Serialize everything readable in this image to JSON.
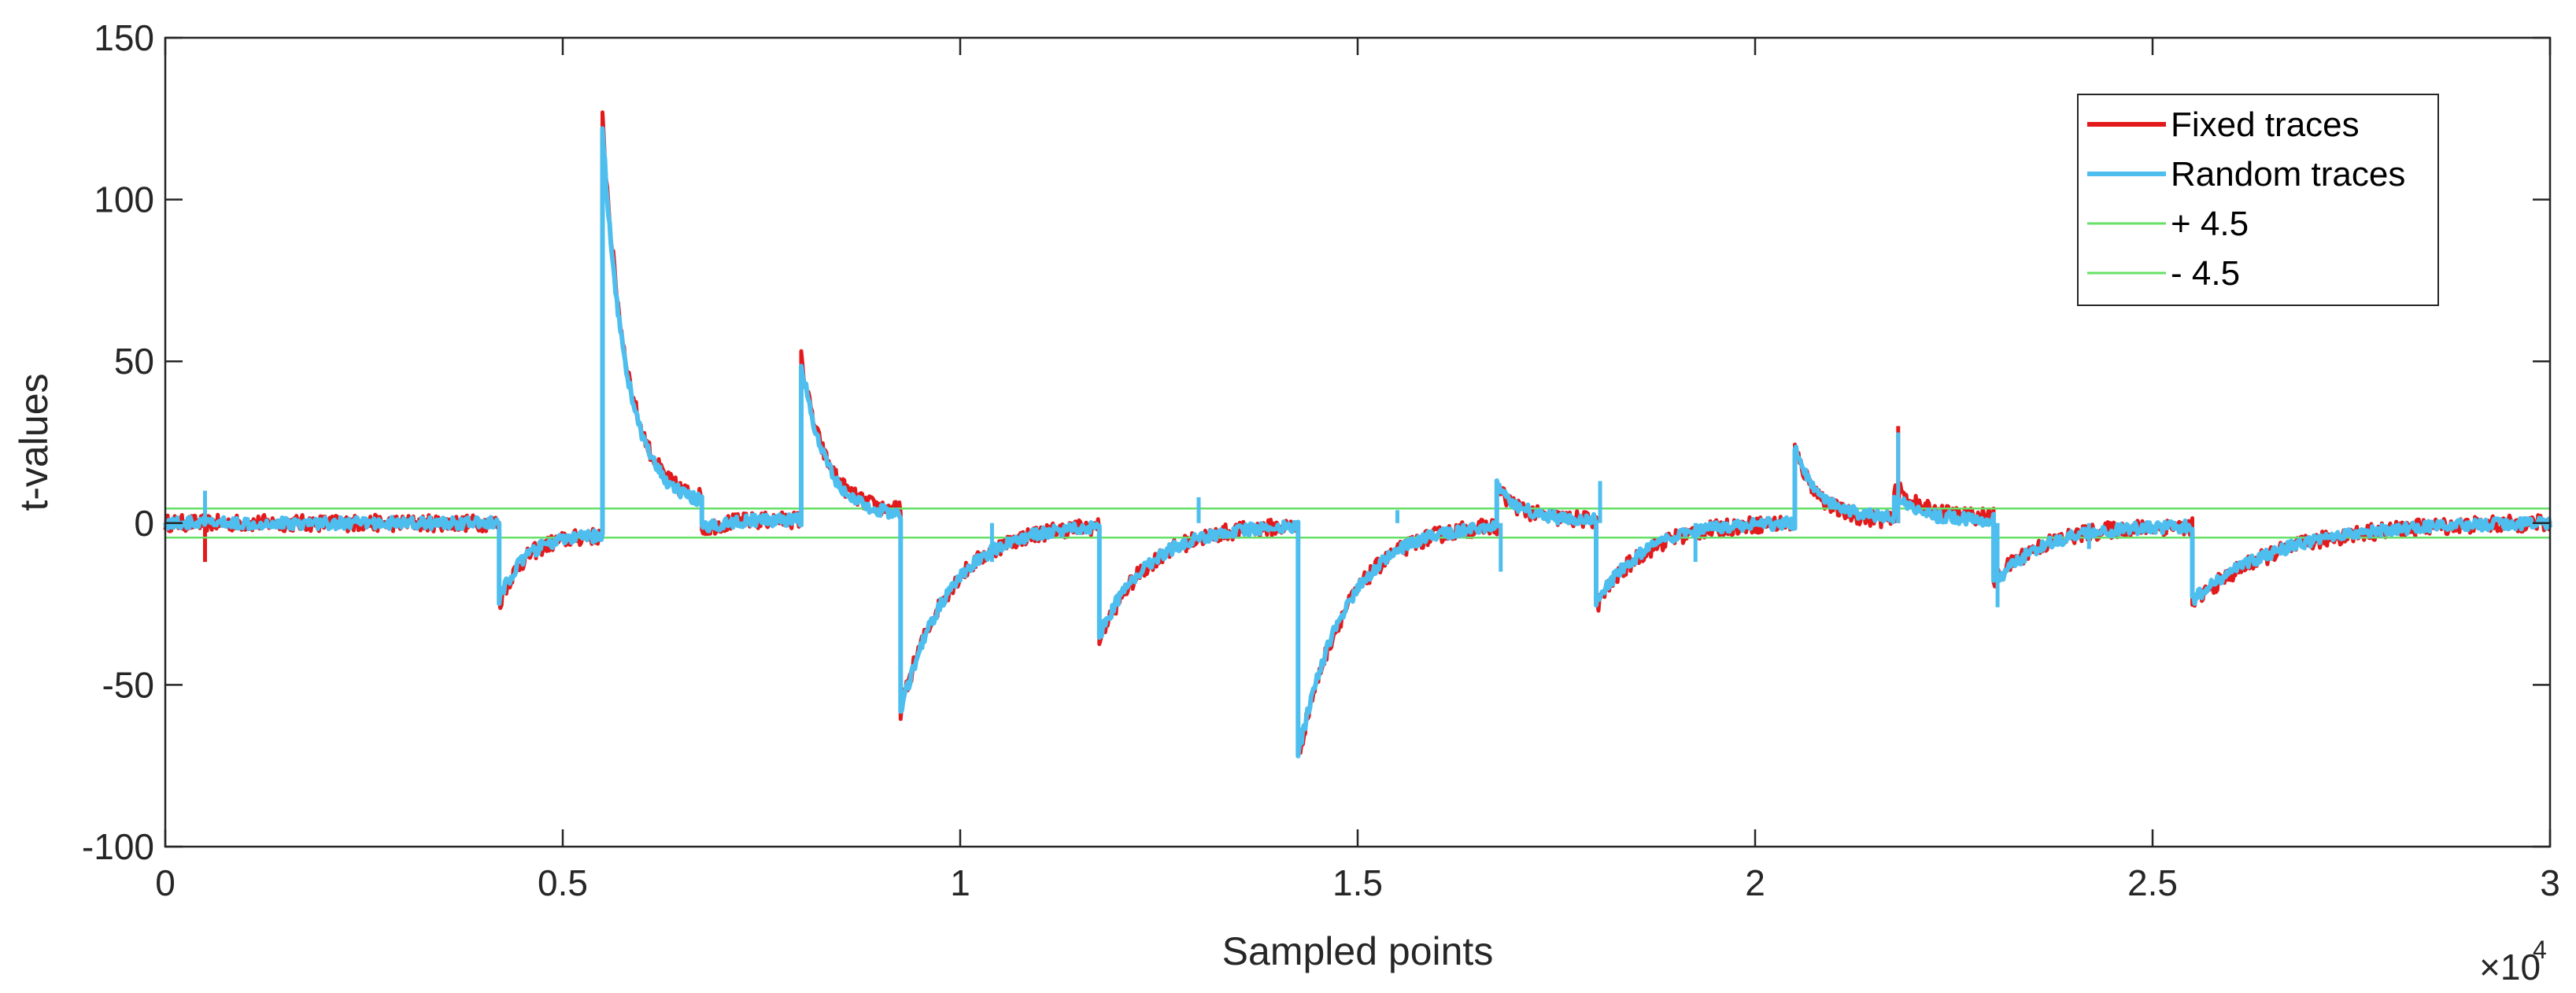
{
  "chart_data": {
    "type": "line",
    "xlabel": "Sampled points",
    "ylabel": "t-values",
    "x_exponent_label": "×10",
    "x_exponent_power": "4",
    "xlim": [
      0,
      3
    ],
    "ylim": [
      -100,
      150
    ],
    "x_ticks": [
      "0",
      "0.5",
      "1",
      "1.5",
      "2",
      "2.5",
      "3"
    ],
    "y_ticks": [
      "-100",
      "-50",
      "0",
      "50",
      "100",
      "150"
    ],
    "x_tick_values": [
      0,
      0.5,
      1,
      1.5,
      2,
      2.5,
      3
    ],
    "y_tick_values": [
      -100,
      -50,
      0,
      50,
      100,
      150
    ],
    "grid": false,
    "legend_position": "top-right",
    "series": [
      {
        "name": "Fixed traces",
        "color": "#e31a1c",
        "segments": [
          {
            "from": 0,
            "to": 0.42,
            "start": 0,
            "end": 0
          },
          {
            "from": 0.42,
            "to": 0.55,
            "start": -25,
            "end": -4
          },
          {
            "from": 0.55,
            "to": 0.675,
            "start": 125,
            "end": 8
          },
          {
            "from": 0.675,
            "to": 0.8,
            "start": -2,
            "end": 1
          },
          {
            "from": 0.8,
            "to": 0.925,
            "start": 51,
            "end": 4
          },
          {
            "from": 0.925,
            "to": 1.175,
            "start": -58,
            "end": -1
          },
          {
            "from": 1.175,
            "to": 1.425,
            "start": -36,
            "end": -1
          },
          {
            "from": 1.425,
            "to": 1.675,
            "start": -73,
            "end": -1
          },
          {
            "from": 1.675,
            "to": 1.8,
            "start": 11,
            "end": 1
          },
          {
            "from": 1.8,
            "to": 2.05,
            "start": -26,
            "end": 0
          },
          {
            "from": 2.05,
            "to": 2.175,
            "start": 23,
            "end": 1
          },
          {
            "from": 2.175,
            "to": 2.3,
            "start": 12,
            "end": 2
          },
          {
            "from": 2.3,
            "to": 2.55,
            "start": -18,
            "end": -1
          },
          {
            "from": 2.55,
            "to": 3,
            "start": -25,
            "end": 0
          }
        ],
        "spikes": [
          {
            "x": 0.05,
            "y": -12
          },
          {
            "x": 2.18,
            "y": 30
          }
        ]
      },
      {
        "name": "Random traces",
        "color": "#4dbeee",
        "segments": [
          {
            "from": 0,
            "to": 0.42,
            "start": 0,
            "end": 0
          },
          {
            "from": 0.42,
            "to": 0.55,
            "start": -24,
            "end": -4
          },
          {
            "from": 0.55,
            "to": 0.675,
            "start": 122,
            "end": 7
          },
          {
            "from": 0.675,
            "to": 0.8,
            "start": -2,
            "end": 1
          },
          {
            "from": 0.8,
            "to": 0.925,
            "start": 50,
            "end": 3
          },
          {
            "from": 0.925,
            "to": 1.175,
            "start": -59,
            "end": -1
          },
          {
            "from": 1.175,
            "to": 1.425,
            "start": -35,
            "end": -1
          },
          {
            "from": 1.425,
            "to": 1.675,
            "start": -72,
            "end": -1
          },
          {
            "from": 1.675,
            "to": 1.8,
            "start": 12,
            "end": 1
          },
          {
            "from": 1.8,
            "to": 2.05,
            "start": -25,
            "end": 0
          },
          {
            "from": 2.05,
            "to": 2.175,
            "start": 24,
            "end": 2
          },
          {
            "from": 2.175,
            "to": 2.3,
            "start": 9,
            "end": 1
          },
          {
            "from": 2.3,
            "to": 2.55,
            "start": -19,
            "end": -1
          },
          {
            "from": 2.55,
            "to": 3,
            "start": -24,
            "end": 0
          }
        ],
        "spikes": [
          {
            "x": 0.05,
            "y": 10
          },
          {
            "x": 1.04,
            "y": -12
          },
          {
            "x": 1.3,
            "y": 8
          },
          {
            "x": 1.55,
            "y": 4
          },
          {
            "x": 1.68,
            "y": -15
          },
          {
            "x": 1.805,
            "y": 13
          },
          {
            "x": 1.925,
            "y": -12
          },
          {
            "x": 2.18,
            "y": 28
          },
          {
            "x": 2.305,
            "y": -26
          },
          {
            "x": 2.42,
            "y": -8
          }
        ]
      },
      {
        "name": "+ 4.5",
        "color": "#66e066",
        "constant": 4.5
      },
      {
        "name": "- 4.5",
        "color": "#66e066",
        "constant": -4.5
      }
    ]
  }
}
